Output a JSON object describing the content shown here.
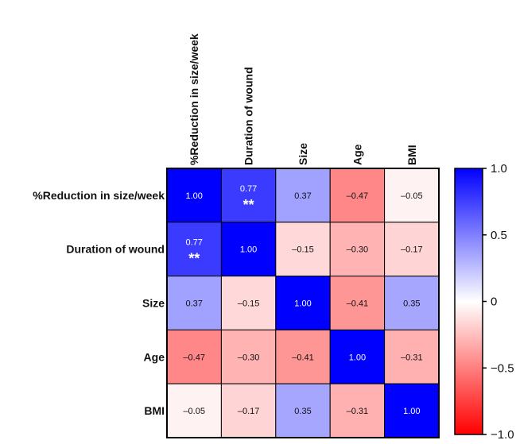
{
  "chart_data": {
    "type": "heatmap",
    "title": "",
    "variables": [
      "%Reduction in size/week",
      "Duration of wound",
      "Size",
      "Age",
      "BMI"
    ],
    "matrix": [
      [
        1.0,
        0.77,
        0.37,
        -0.47,
        -0.05
      ],
      [
        0.77,
        1.0,
        -0.15,
        -0.3,
        -0.17
      ],
      [
        0.37,
        -0.15,
        1.0,
        -0.41,
        0.35
      ],
      [
        -0.47,
        -0.3,
        -0.41,
        1.0,
        -0.31
      ],
      [
        -0.05,
        -0.17,
        0.35,
        -0.31,
        1.0
      ]
    ],
    "value_labels": [
      [
        "1.00",
        "0.77",
        "0.37",
        "–0.47",
        "–0.05"
      ],
      [
        "0.77",
        "1.00",
        "–0.15",
        "–0.30",
        "–0.17"
      ],
      [
        "0.37",
        "–0.15",
        "1.00",
        "–0.41",
        "0.35"
      ],
      [
        "–0.47",
        "–0.30",
        "–0.41",
        "1.00",
        "–0.31"
      ],
      [
        "–0.05",
        "–0.17",
        "0.35",
        "–0.31",
        "1.00"
      ]
    ],
    "significance": [
      {
        "row": 0,
        "col": 1,
        "marker": "**"
      },
      {
        "row": 1,
        "col": 0,
        "marker": "**"
      }
    ],
    "colorbar": {
      "range": [
        -1.0,
        1.0
      ],
      "ticks": [
        1.0,
        0.5,
        0,
        -0.5,
        -1.0
      ],
      "tick_labels": [
        "1.0",
        "0.5",
        "0",
        "−0.5",
        "−1.0"
      ],
      "colors": {
        "negative": "#ff0000",
        "zero": "#ffffff",
        "positive": "#0000ff"
      },
      "placement": "right"
    }
  }
}
